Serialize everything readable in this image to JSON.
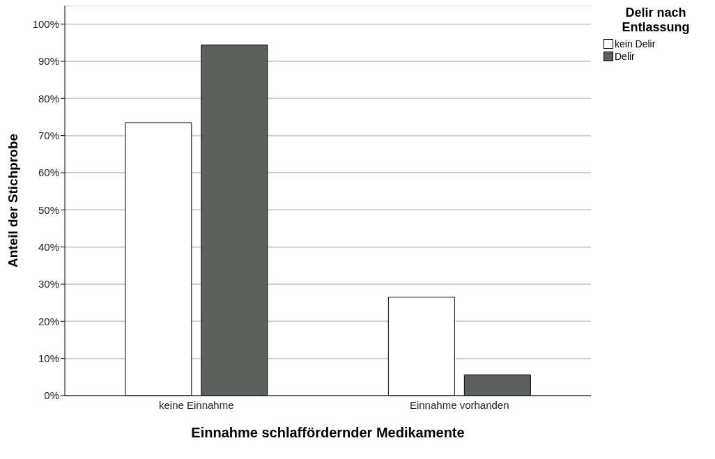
{
  "chart_data": {
    "type": "bar",
    "xlabel": "Einnahme schlaffördernder Medikamente",
    "ylabel": "Anteil der Stichprobe",
    "legend_title": "Delir nach Entlassung",
    "categories": [
      "keine Einnahme",
      "Einnahme vorhanden"
    ],
    "series": [
      {
        "name": "kein Delir",
        "color": "#ffffff",
        "values": [
          73.5,
          26.5
        ]
      },
      {
        "name": "Delir",
        "color": "#5a615b",
        "values": [
          94.4,
          5.6
        ]
      }
    ],
    "ylim": [
      0,
      105
    ],
    "yticks": [
      {
        "value": 0,
        "label": "0%"
      },
      {
        "value": 10,
        "label": "10%"
      },
      {
        "value": 20,
        "label": "20%"
      },
      {
        "value": 30,
        "label": "30%"
      },
      {
        "value": 40,
        "label": "40%"
      },
      {
        "value": 50,
        "label": "50%"
      },
      {
        "value": 60,
        "label": "60%"
      },
      {
        "value": 70,
        "label": "70%"
      },
      {
        "value": 80,
        "label": "80%"
      },
      {
        "value": 90,
        "label": "90%"
      },
      {
        "value": 100,
        "label": "100%"
      }
    ],
    "grid": "y",
    "legend": "top right"
  }
}
